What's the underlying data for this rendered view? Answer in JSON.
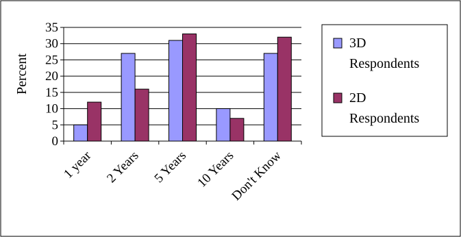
{
  "chart_data": {
    "type": "bar",
    "title": "",
    "xlabel": "",
    "ylabel": "Percent",
    "ylim": [
      0,
      35
    ],
    "yticks": [
      0,
      5,
      10,
      15,
      20,
      25,
      30,
      35
    ],
    "grid": true,
    "legend_position": "right",
    "categories": [
      "1 year",
      "2 Years",
      "5 Years",
      "10 Years",
      "Don't Know"
    ],
    "series": [
      {
        "name": "3D Respondents",
        "color": "#9999FF",
        "values": [
          5,
          27,
          31,
          10,
          27
        ]
      },
      {
        "name": "2D Respondents",
        "color": "#993366",
        "values": [
          12,
          16,
          33,
          7,
          32
        ]
      }
    ]
  }
}
